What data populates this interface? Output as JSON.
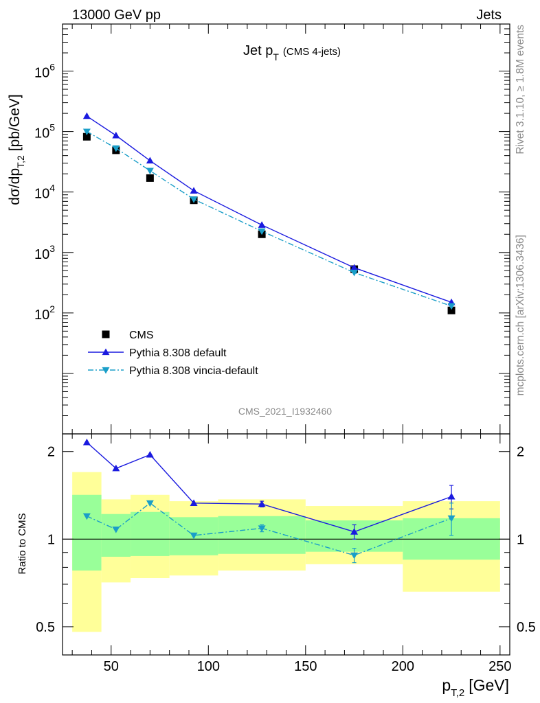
{
  "header": {
    "left": "13000 GeV pp",
    "right": "Jets"
  },
  "side_labels": {
    "rivet": "Rivet 3.1.10, ≥ 1.8M events",
    "mcplots": "mcplots.cern.ch [arXiv:1306.3436]"
  },
  "chart_data": {
    "type": "line",
    "title": {
      "main": "Jet p",
      "sub": "T",
      "suffix": "(CMS 4-jets)"
    },
    "analysis_label": "CMS_2021_I1932460",
    "xlabel": {
      "main": "p",
      "sub": "T,2",
      "suffix": "[GeV]"
    },
    "ylabel": {
      "pre": "dσ/dp",
      "sub": "T,2",
      "suffix": "[pb/GeV]"
    },
    "ratio_ylabel": "Ratio to CMS",
    "xlim": [
      25,
      255
    ],
    "ylim": [
      1,
      6000000
    ],
    "yscale": "log",
    "ratio_ylim": [
      0.4,
      2.3
    ],
    "ratio_yscale": "log",
    "x_ticks": [
      50,
      100,
      150,
      200,
      250
    ],
    "x_tick_labels": [
      "50",
      "100",
      "150",
      "200",
      "250"
    ],
    "y_ticks": [
      100,
      1000,
      10000,
      100000,
      1000000
    ],
    "y_tick_labels": [
      {
        "base": "10",
        "exp": "2"
      },
      {
        "base": "10",
        "exp": "3"
      },
      {
        "base": "10",
        "exp": "4"
      },
      {
        "base": "10",
        "exp": "5"
      },
      {
        "base": "10",
        "exp": "6"
      }
    ],
    "ratio_ticks": [
      0.5,
      1,
      2
    ],
    "ratio_tick_labels": [
      "0.5",
      "1",
      "2"
    ],
    "bins": [
      [
        30,
        45
      ],
      [
        45,
        60
      ],
      [
        60,
        80
      ],
      [
        80,
        105
      ],
      [
        105,
        150
      ],
      [
        150,
        200
      ],
      [
        200,
        250
      ]
    ],
    "x": [
      37.5,
      52.5,
      70,
      92.5,
      127.5,
      175,
      225
    ],
    "series": [
      {
        "name": "CMS",
        "color": "#000000",
        "marker": "square",
        "values": [
          82000,
          49000,
          17000,
          7300,
          2000,
          530,
          110
        ]
      },
      {
        "name": "Pythia 8.308 default",
        "color": "#1a1adf",
        "marker": "triangle-up",
        "line": "solid",
        "values": [
          180000,
          86000,
          33000,
          10500,
          2850,
          560,
          150
        ],
        "ratio": [
          2.15,
          1.75,
          1.95,
          1.33,
          1.32,
          1.06,
          1.4
        ],
        "ratio_err": [
          0.01,
          0.01,
          0.01,
          0.01,
          0.03,
          0.06,
          0.13
        ]
      },
      {
        "name": "Pythia 8.308 vincia-default",
        "color": "#1a9ec8",
        "marker": "triangle-down",
        "line": "dashdot",
        "values": [
          100000,
          53000,
          22500,
          7600,
          2250,
          465,
          130
        ],
        "ratio": [
          1.2,
          1.08,
          1.33,
          1.03,
          1.09,
          0.88,
          1.18
        ],
        "ratio_err": [
          0.01,
          0.01,
          0.01,
          0.01,
          0.03,
          0.05,
          0.15
        ]
      }
    ],
    "uncertainty_bands": {
      "inner_color": "#99ff99",
      "outer_color": "#ffff99",
      "inner": [
        [
          0.78,
          1.42
        ],
        [
          0.87,
          1.22
        ],
        [
          0.875,
          1.24
        ],
        [
          0.88,
          1.19
        ],
        [
          0.89,
          1.2
        ],
        [
          0.905,
          1.16
        ],
        [
          0.85,
          1.18
        ]
      ],
      "outer": [
        [
          0.48,
          1.7
        ],
        [
          0.71,
          1.37
        ],
        [
          0.735,
          1.42
        ],
        [
          0.75,
          1.35
        ],
        [
          0.78,
          1.37
        ],
        [
          0.82,
          1.3
        ],
        [
          0.66,
          1.35
        ]
      ]
    },
    "legend_position": "lower-left",
    "grid": false
  }
}
